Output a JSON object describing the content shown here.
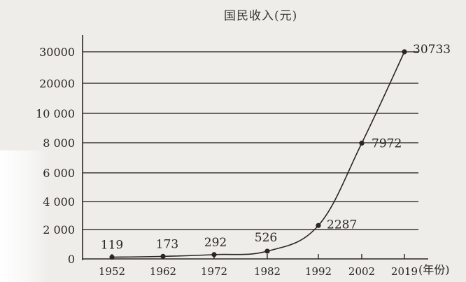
{
  "chart_data": {
    "type": "line",
    "title": "国民收入(元)",
    "xlabel": "(年份)",
    "ylabel": "",
    "x_ticks": [
      "1952",
      "1962",
      "1972",
      "1982",
      "1992",
      "2002",
      "2019"
    ],
    "y_ticks": [
      "0",
      "2 000",
      "4 000",
      "6 000",
      "8 000",
      "10 000",
      "20000",
      "30000"
    ],
    "grid": true,
    "series": [
      {
        "points": [
          {
            "x": "1952",
            "y": 119,
            "label": "119"
          },
          {
            "x": "1962",
            "y": 173,
            "label": "173"
          },
          {
            "x": "1972",
            "y": 292,
            "label": "292"
          },
          {
            "x": "1982",
            "y": 526,
            "label": "526"
          },
          {
            "x": "1992",
            "y": 2287,
            "label": "2287"
          },
          {
            "x": "2002",
            "y": 7972,
            "label": "7972"
          },
          {
            "x": "2019",
            "y": 30733,
            "label": "30733"
          }
        ]
      }
    ]
  },
  "colors": {
    "ink": "#2a2623",
    "grid": "#3d3936",
    "background": "#eeedea"
  }
}
